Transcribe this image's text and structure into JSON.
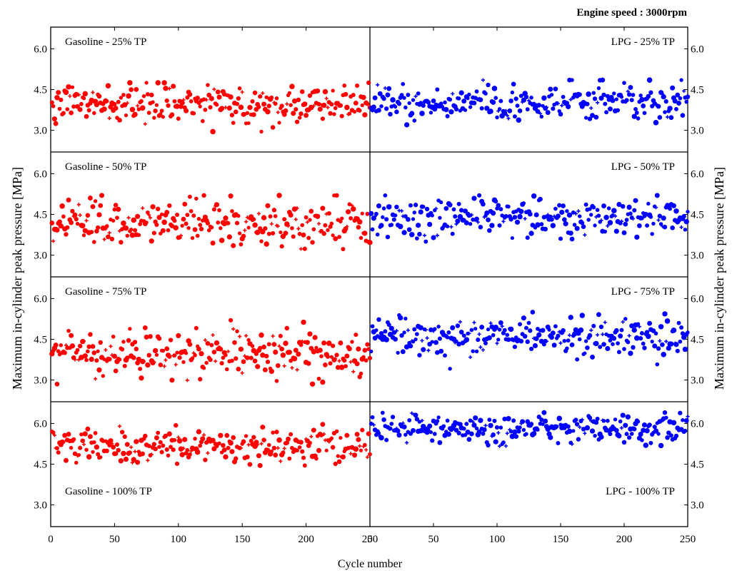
{
  "header": {
    "engine_speed": "Engine speed : 3000rpm"
  },
  "chart_data": {
    "type": "scatter",
    "xlabel": "Cycle number",
    "ylabel_left": "Maximum in-cylinder peak pressure [MPa]",
    "ylabel_right": "Maximum in-cylinder peak pressure [MPa]",
    "xlim": [
      0,
      250
    ],
    "x_ticks": [
      "0",
      "50",
      "100",
      "150",
      "200",
      "250"
    ],
    "ylim": [
      2.2,
      6.8
    ],
    "y_ticks": [
      "3.0",
      "4.5",
      "6.0"
    ],
    "colors": {
      "Gasoline": "#ff0000",
      "LPG": "#0000ff"
    },
    "num_cycles": 250,
    "panels": [
      {
        "row": 0,
        "fuel": "Gasoline",
        "label": "Gasoline - 25% TP",
        "label_pos": "top-left",
        "summary": {
          "mean": 3.95,
          "spread": 0.33,
          "min": 2.95,
          "max": 4.75
        }
      },
      {
        "row": 0,
        "fuel": "LPG",
        "label": "LPG - 25% TP",
        "label_pos": "top-right",
        "summary": {
          "mean": 4.05,
          "spread": 0.33,
          "min": 3.2,
          "max": 4.85
        }
      },
      {
        "row": 1,
        "fuel": "Gasoline",
        "label": "Gasoline - 50% TP",
        "label_pos": "top-left",
        "summary": {
          "mean": 4.15,
          "spread": 0.42,
          "min": 3.0,
          "max": 5.2
        }
      },
      {
        "row": 1,
        "fuel": "LPG",
        "label": "LPG - 50% TP",
        "label_pos": "top-right",
        "summary": {
          "mean": 4.4,
          "spread": 0.35,
          "min": 2.95,
          "max": 5.2
        }
      },
      {
        "row": 2,
        "fuel": "Gasoline",
        "label": "Gasoline - 75% TP",
        "label_pos": "top-left",
        "summary": {
          "mean": 4.0,
          "spread": 0.48,
          "min": 2.85,
          "max": 5.3
        }
      },
      {
        "row": 2,
        "fuel": "LPG",
        "label": "LPG - 75% TP",
        "label_pos": "top-right",
        "summary": {
          "mean": 4.65,
          "spread": 0.35,
          "min": 3.35,
          "max": 5.5
        }
      },
      {
        "row": 3,
        "fuel": "Gasoline",
        "label": "Gasoline - 100% TP",
        "label_pos": "bottom-left",
        "summary": {
          "mean": 5.15,
          "spread": 0.33,
          "min": 4.45,
          "max": 6.0
        }
      },
      {
        "row": 3,
        "fuel": "LPG",
        "label": "LPG - 100% TP",
        "label_pos": "bottom-right",
        "summary": {
          "mean": 5.8,
          "spread": 0.28,
          "min": 4.9,
          "max": 6.4
        }
      }
    ]
  }
}
